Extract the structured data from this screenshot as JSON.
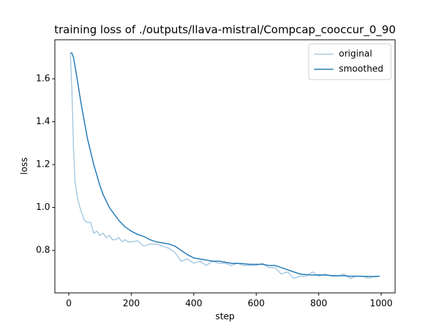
{
  "chart_data": {
    "type": "line",
    "title": "training loss of ./outputs/llava-mistral/Compcap_cooccur_0_90",
    "xlabel": "step",
    "ylabel": "loss",
    "x": [
      5,
      10,
      15,
      20,
      30,
      40,
      50,
      60,
      70,
      80,
      90,
      100,
      110,
      120,
      130,
      140,
      150,
      160,
      170,
      180,
      190,
      200,
      220,
      240,
      260,
      280,
      300,
      320,
      340,
      360,
      380,
      400,
      420,
      440,
      460,
      480,
      500,
      520,
      540,
      560,
      580,
      600,
      620,
      640,
      660,
      680,
      700,
      720,
      740,
      760,
      780,
      800,
      820,
      840,
      860,
      880,
      900,
      920,
      940,
      960,
      980,
      995
    ],
    "series": [
      {
        "name": "original",
        "color": "#a6c8e0",
        "values": [
          1.72,
          1.55,
          1.28,
          1.12,
          1.03,
          0.98,
          0.94,
          0.93,
          0.93,
          0.88,
          0.89,
          0.87,
          0.88,
          0.86,
          0.87,
          0.85,
          0.85,
          0.86,
          0.84,
          0.85,
          0.84,
          0.84,
          0.845,
          0.82,
          0.83,
          0.83,
          0.82,
          0.81,
          0.79,
          0.75,
          0.76,
          0.74,
          0.75,
          0.73,
          0.75,
          0.74,
          0.74,
          0.73,
          0.74,
          0.73,
          0.73,
          0.73,
          0.74,
          0.72,
          0.72,
          0.69,
          0.7,
          0.67,
          0.68,
          0.68,
          0.7,
          0.68,
          0.69,
          0.68,
          0.68,
          0.69,
          0.67,
          0.68,
          0.68,
          0.67,
          0.68,
          0.68
        ]
      },
      {
        "name": "smoothed",
        "color": "#1f77b4",
        "values": [
          1.72,
          1.72,
          1.7,
          1.66,
          1.57,
          1.48,
          1.4,
          1.32,
          1.26,
          1.2,
          1.15,
          1.1,
          1.06,
          1.03,
          1.0,
          0.98,
          0.96,
          0.94,
          0.925,
          0.91,
          0.9,
          0.89,
          0.875,
          0.865,
          0.85,
          0.84,
          0.835,
          0.83,
          0.82,
          0.8,
          0.78,
          0.765,
          0.76,
          0.755,
          0.75,
          0.75,
          0.745,
          0.74,
          0.74,
          0.738,
          0.735,
          0.735,
          0.735,
          0.73,
          0.73,
          0.72,
          0.71,
          0.7,
          0.69,
          0.687,
          0.685,
          0.686,
          0.685,
          0.683,
          0.682,
          0.682,
          0.68,
          0.68,
          0.679,
          0.679,
          0.678,
          0.68
        ]
      }
    ],
    "xlim": [
      -44.5,
      1044.5
    ],
    "xticks": [
      0,
      200,
      400,
      600,
      800,
      1000
    ],
    "ylim": [
      0.602,
      1.782
    ],
    "yticks": [
      0.8,
      {
        "value": 1,
        "label": "1.0"
      },
      1.2,
      1.4,
      1.6
    ],
    "legend": "upper right",
    "grid": false
  }
}
